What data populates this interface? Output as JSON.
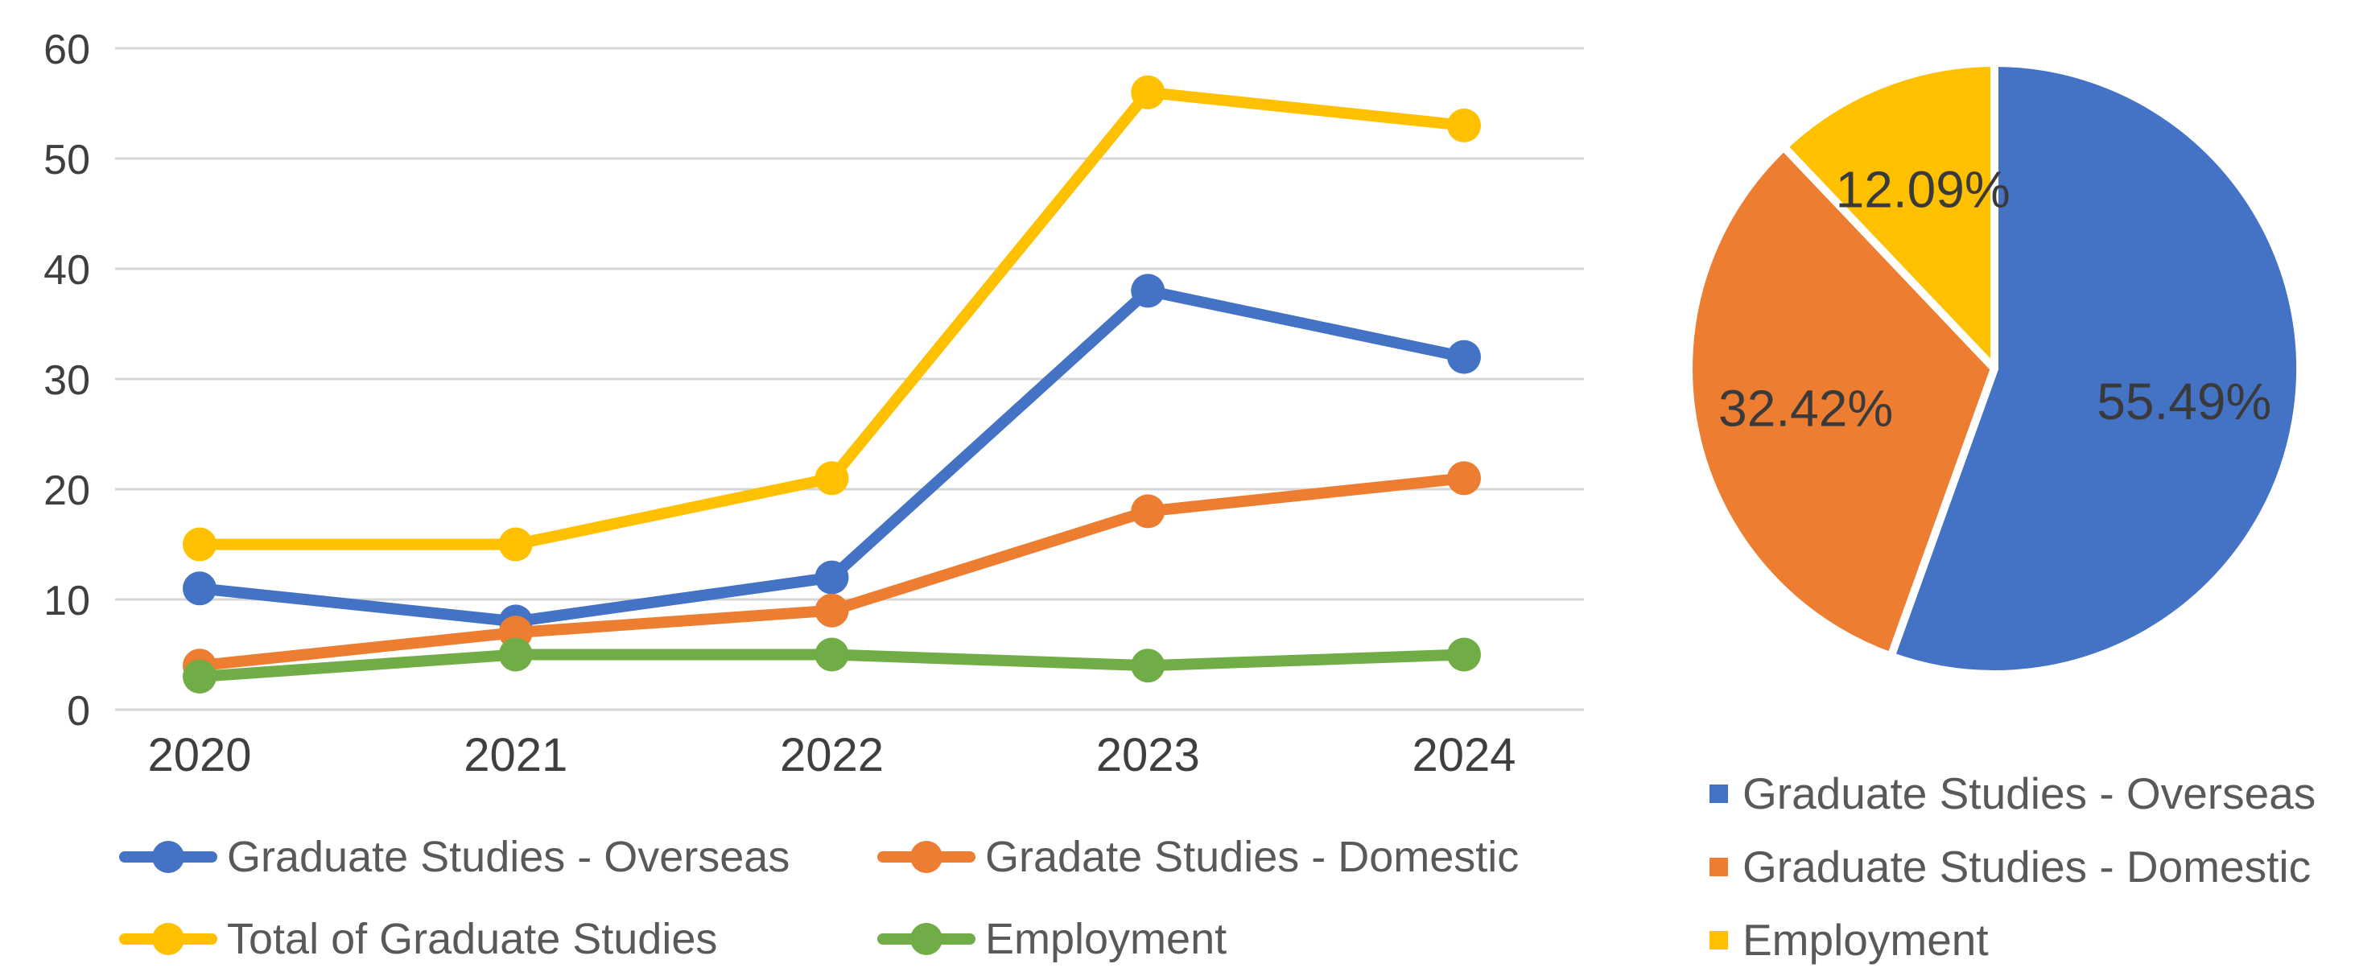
{
  "page": {
    "background": "#ffffff"
  },
  "colors": {
    "overseas_blue": "#4472C4",
    "domestic_orange": "#ED7D31",
    "total_yellow": "#FFC000",
    "employment_green": "#70AD47",
    "axis_text": "#3f3f3f",
    "legend_text": "#595959",
    "gridline": "#D6D6D6",
    "pie_label_text": "#3a3a3a",
    "pie_slice_border": "#ffffff"
  },
  "chart_data": [
    {
      "type": "line",
      "title": "",
      "xlabel": "",
      "ylabel": "",
      "categories": [
        "2020",
        "2021",
        "2022",
        "2023",
        "2024"
      ],
      "series": [
        {
          "name": "Graduate Studies - Overseas",
          "color": "#4472C4",
          "values": [
            11,
            8,
            12,
            38,
            32
          ]
        },
        {
          "name": "Gradate Studies - Domestic",
          "color": "#ED7D31",
          "values": [
            4,
            7,
            9,
            18,
            21
          ]
        },
        {
          "name": "Total of Graduate Studies",
          "color": "#FFC000",
          "values": [
            15,
            15,
            21,
            56,
            53
          ]
        },
        {
          "name": "Employment",
          "color": "#70AD47",
          "values": [
            3,
            5,
            5,
            4,
            5
          ]
        }
      ],
      "ylim": [
        0,
        60
      ],
      "yticks": [
        0,
        10,
        20,
        30,
        40,
        50,
        60
      ],
      "grid": true,
      "legend_position": "bottom",
      "marker_style": "circle"
    },
    {
      "type": "pie",
      "title": "",
      "start_angle_deg": 0,
      "direction": "clockwise",
      "slices": [
        {
          "label": "Graduate Studies - Overseas",
          "value": 55.49,
          "display": "55.49%",
          "color": "#4472C4"
        },
        {
          "label": "Graduate Studies - Domestic",
          "value": 32.42,
          "display": "32.42%",
          "color": "#ED7D31"
        },
        {
          "label": "Employment",
          "value": 12.09,
          "display": "12.09%",
          "color": "#FFC000"
        }
      ],
      "legend_position": "bottom-right",
      "legend_marker": "square"
    }
  ]
}
